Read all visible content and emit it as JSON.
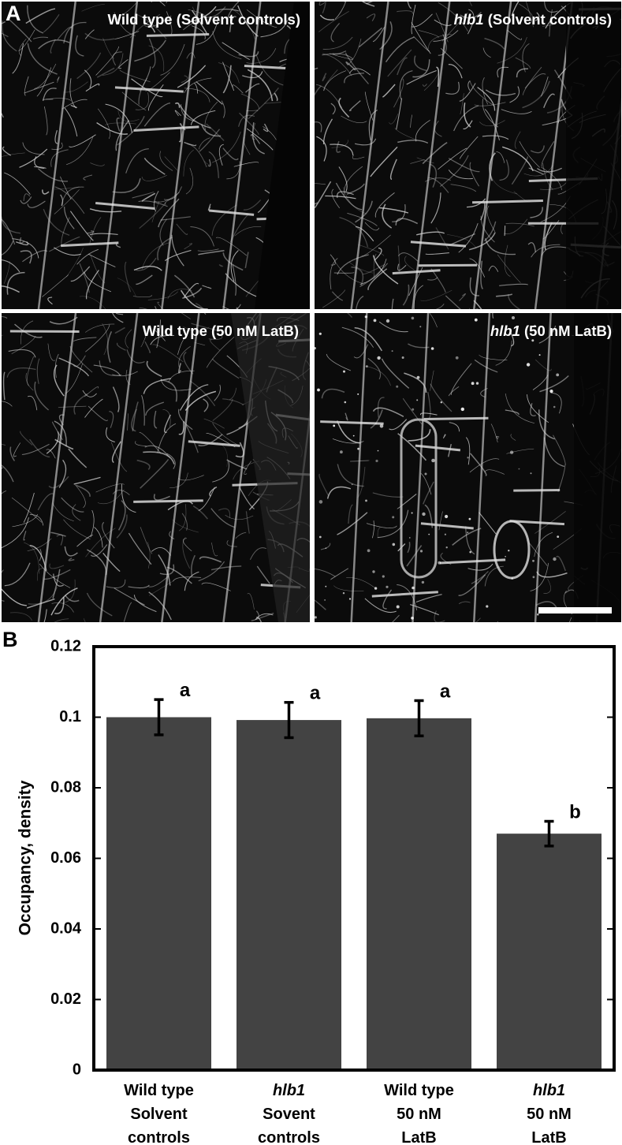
{
  "figure": {
    "panel_a_letter": "A",
    "panel_b_letter": "B"
  },
  "micrographs": [
    {
      "gene": "",
      "rest": "Wild type (Solvent controls)"
    },
    {
      "gene": "hlb1",
      "rest": " (Solvent controls)"
    },
    {
      "gene": "",
      "rest": "Wild type (50 nM LatB)"
    },
    {
      "gene": "hlb1",
      "rest": " (50 nM LatB)"
    }
  ],
  "colors": {
    "bar": "#434343",
    "micrograph_background": "#070707",
    "filament": "#d8d8d8",
    "scale_bar": "#ffffff"
  },
  "chart_data": {
    "type": "bar",
    "categories": [
      [
        "Wild type",
        "Solvent",
        "controls"
      ],
      [
        "hlb1",
        "Sovent",
        "controls"
      ],
      [
        "Wild type",
        "50 nM",
        "LatB"
      ],
      [
        "hlb1",
        "50 nM",
        "LatB"
      ]
    ],
    "italic_first_line": [
      false,
      true,
      false,
      true
    ],
    "values": [
      0.1,
      0.0992,
      0.0997,
      0.067
    ],
    "errors": [
      0.005,
      0.005,
      0.005,
      0.0035
    ],
    "significance": [
      "a",
      "a",
      "a",
      "b"
    ],
    "ylabel": "Occupancy, density",
    "xlabel": "",
    "ylim": [
      0,
      0.12
    ],
    "yticks": [
      "0",
      "0.02",
      "0.04",
      "0.06",
      "0.08",
      "0.1",
      "0.12"
    ],
    "ytick_values": [
      0,
      0.02,
      0.04,
      0.06,
      0.08,
      0.1,
      0.12
    ],
    "grid": false
  }
}
